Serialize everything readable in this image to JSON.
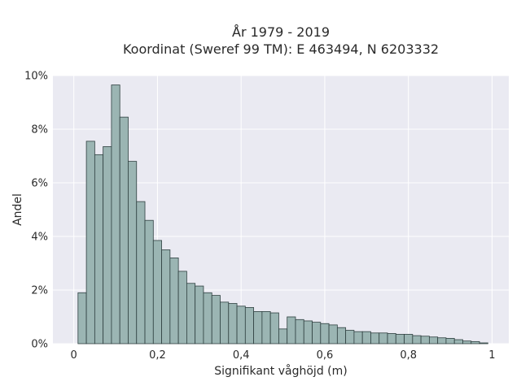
{
  "chart_data": {
    "type": "bar",
    "title_line1": "År 1979 - 2019",
    "title_line2": "Koordinat (Sweref 99 TM): E 463494, N 6203332",
    "xlabel": "Signifikant våghöjd (m)",
    "ylabel": "Andel",
    "xlim": [
      -0.05,
      1.04
    ],
    "ylim": [
      0,
      10
    ],
    "x_ticks": [
      0,
      0.2,
      0.4,
      0.6,
      0.8,
      1
    ],
    "x_tick_labels": [
      "0",
      "0,2",
      "0,4",
      "0,6",
      "0,8",
      "1"
    ],
    "y_ticks": [
      0,
      2,
      4,
      6,
      8,
      10
    ],
    "y_tick_labels": [
      "0%",
      "2%",
      "4%",
      "6%",
      "8%",
      "10%"
    ],
    "bin_width": 0.02,
    "bin_starts": [
      0.01,
      0.03,
      0.05,
      0.07,
      0.09,
      0.11,
      0.13,
      0.15,
      0.17,
      0.19,
      0.21,
      0.23,
      0.25,
      0.27,
      0.29,
      0.31,
      0.33,
      0.35,
      0.37,
      0.39,
      0.41,
      0.43,
      0.45,
      0.47,
      0.49,
      0.51,
      0.53,
      0.55,
      0.57,
      0.59,
      0.61,
      0.63,
      0.65,
      0.67,
      0.69,
      0.71,
      0.73,
      0.75,
      0.77,
      0.79,
      0.81,
      0.83,
      0.85,
      0.87,
      0.89,
      0.91,
      0.93,
      0.95,
      0.97
    ],
    "values": [
      1.9,
      7.55,
      7.05,
      7.35,
      9.65,
      8.45,
      6.8,
      5.3,
      4.6,
      3.85,
      3.5,
      3.2,
      2.7,
      2.25,
      2.15,
      1.9,
      1.8,
      1.55,
      1.5,
      1.4,
      1.35,
      1.2,
      1.2,
      1.15,
      0.55,
      1.0,
      0.9,
      0.85,
      0.8,
      0.75,
      0.7,
      0.6,
      0.5,
      0.45,
      0.45,
      0.4,
      0.4,
      0.38,
      0.35,
      0.35,
      0.3,
      0.28,
      0.25,
      0.22,
      0.2,
      0.15,
      0.1,
      0.08,
      0.03
    ],
    "grid": true,
    "colors": {
      "background": "#eaeaf2",
      "bar_fill": "#9bb5b3",
      "bar_edge": "#2f4040",
      "grid": "#ffffff"
    }
  }
}
